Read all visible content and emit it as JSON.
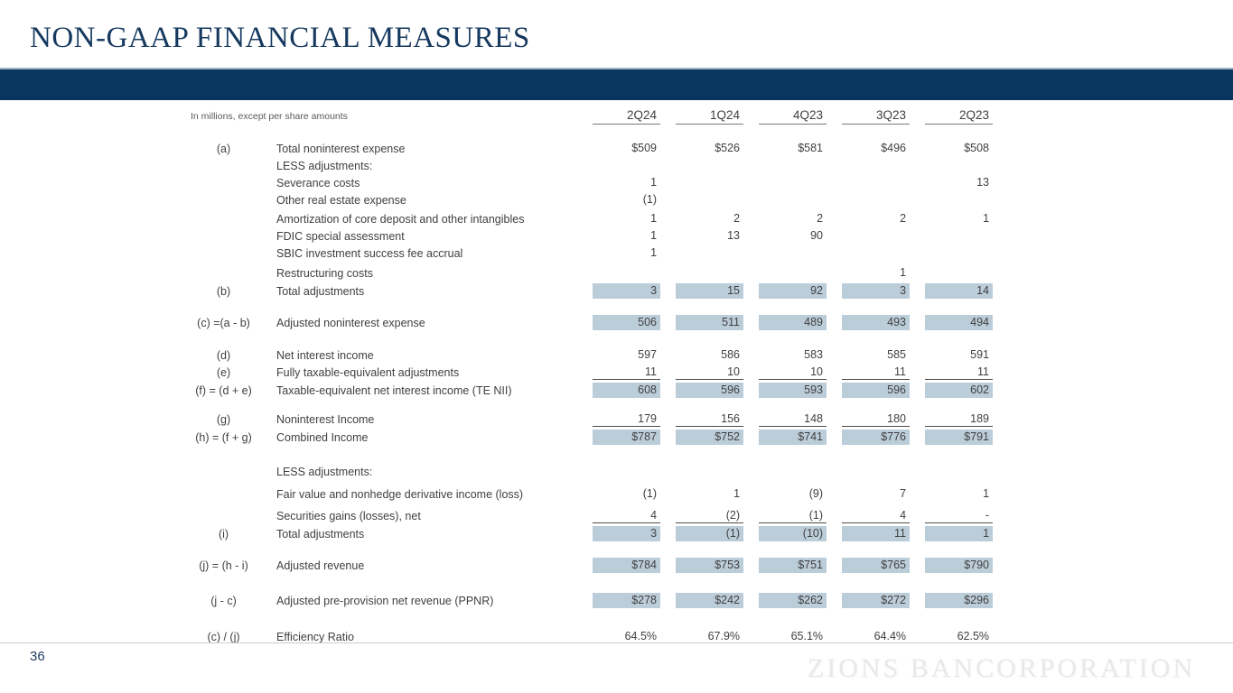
{
  "title": "NON-GAAP FINANCIAL MEASURES",
  "page_number": "36",
  "watermark": "ZIONS BANCORPORATION",
  "colors": {
    "brand_navy": "#08365e",
    "title_navy": "#16395f",
    "highlight": "#bccdda",
    "text": "#404040"
  },
  "table": {
    "note": "In millions, except per share amounts",
    "columns": [
      "2Q24",
      "1Q24",
      "4Q23",
      "3Q23",
      "2Q23"
    ],
    "rows": [
      {
        "code": "(a)",
        "label": "Total noninterest expense",
        "values": [
          "$509",
          "$526",
          "$581",
          "$496",
          "$508"
        ]
      },
      {
        "code": "",
        "label": "LESS adjustments:",
        "values": [
          "",
          "",
          "",
          "",
          ""
        ]
      },
      {
        "code": "",
        "label": "Severance costs",
        "values": [
          "1",
          "",
          "",
          "",
          "13"
        ]
      },
      {
        "code": "",
        "label": "Other real estate expense",
        "values": [
          "(1)",
          "",
          "",
          "",
          ""
        ]
      },
      {
        "code": "",
        "label": "Amortization of core deposit and other intangibles",
        "values": [
          "1",
          "2",
          "2",
          "2",
          "1"
        ],
        "gap_before": 2
      },
      {
        "code": "",
        "label": "FDIC special assessment",
        "values": [
          "1",
          "13",
          "90",
          "",
          ""
        ]
      },
      {
        "code": "",
        "label": "SBIC investment success fee accrual",
        "values": [
          "1",
          "",
          "",
          "",
          ""
        ]
      },
      {
        "code": "",
        "label": "Restructuring costs",
        "values": [
          "",
          "",
          "",
          "1",
          ""
        ],
        "gap_before": 3
      },
      {
        "code": "(b)",
        "label": "Total adjustments",
        "values": [
          "3",
          "15",
          "92",
          "3",
          "14"
        ],
        "highlight": true
      },
      {
        "code": "(c) =(a - b)",
        "label": "Adjusted noninterest expense",
        "values": [
          "506",
          "511",
          "489",
          "493",
          "494"
        ],
        "highlight": true,
        "gap_before": 14
      },
      {
        "code": "(d)",
        "label": "Net interest income",
        "values": [
          "597",
          "586",
          "583",
          "585",
          "591"
        ],
        "gap_before": 16
      },
      {
        "code": "(e)",
        "label": "Fully taxable-equivalent adjustments",
        "values": [
          "11",
          "10",
          "10",
          "11",
          "11"
        ],
        "underline": true
      },
      {
        "code": "(f) = (d + e)",
        "label": "Taxable-equivalent net interest income (TE NII)",
        "values": [
          "608",
          "596",
          "593",
          "596",
          "602"
        ],
        "highlight": true
      },
      {
        "code": "(g)",
        "label": "Noninterest Income",
        "values": [
          "179",
          "156",
          "148",
          "180",
          "189"
        ],
        "underline": true,
        "gap_before": 12
      },
      {
        "code": "(h) = (f + g)",
        "label": "Combined Income",
        "values": [
          "$787",
          "$752",
          "$741",
          "$776",
          "$791"
        ],
        "highlight": true
      },
      {
        "code": "",
        "label": "LESS adjustments:",
        "values": [
          "",
          "",
          "",
          "",
          ""
        ],
        "gap_before": 18
      },
      {
        "code": "",
        "label": "Fair value and nonhedge derivative income (loss)",
        "values": [
          "(1)",
          "1",
          "(9)",
          "7",
          "1"
        ],
        "gap_before": 6
      },
      {
        "code": "",
        "label": "Securities gains (losses), net",
        "values": [
          "4",
          "(2)",
          "(1)",
          "4",
          "-"
        ],
        "underline": true,
        "gap_before": 5
      },
      {
        "code": "(i)",
        "label": "Total adjustments",
        "values": [
          "3",
          "(1)",
          "(10)",
          "11",
          "1"
        ],
        "highlight": true
      },
      {
        "code": "(j) = (h - i)",
        "label": "Adjusted revenue",
        "values": [
          "$784",
          "$753",
          "$751",
          "$765",
          "$790"
        ],
        "highlight": true,
        "gap_before": 14
      },
      {
        "code": "(j - c)",
        "label": "Adjusted pre-provision net revenue (PPNR)",
        "values": [
          "$278",
          "$242",
          "$262",
          "$272",
          "$296"
        ],
        "highlight": true,
        "gap_before": 18
      },
      {
        "code": "(c) / (j)",
        "label": "Efficiency Ratio",
        "values": [
          "64.5%",
          "67.9%",
          "65.1%",
          "64.4%",
          "62.5%"
        ],
        "gap_before": 20
      }
    ]
  }
}
